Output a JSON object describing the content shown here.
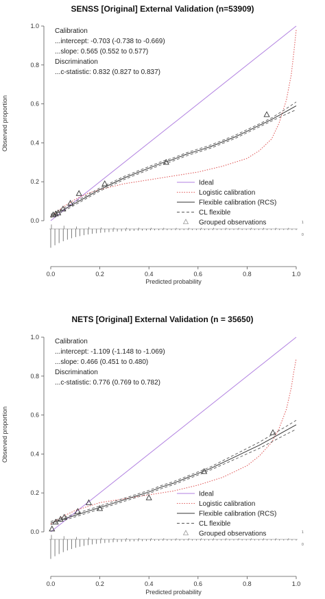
{
  "chart_data": [
    {
      "type": "line",
      "title": "SENSS [Original] External Validation (n=53909)",
      "xlabel": "Predicted probability",
      "ylabel": "Observed proportion",
      "xlim": [
        0,
        1
      ],
      "ylim": [
        0,
        1
      ],
      "x_ticks": [
        "0.0",
        "0.2",
        "0.4",
        "0.6",
        "0.8",
        "1.0"
      ],
      "y_ticks": [
        "0.0",
        "0.2",
        "0.4",
        "0.6",
        "0.8",
        "1.0"
      ],
      "stats": [
        "Calibration",
        "...intercept: -0.703 (-0.738 to -0.669)",
        "...slope: 0.565 (0.552 to 0.577)",
        "Discrimination",
        "...c-statistic: 0.832 (0.827 to 0.837)"
      ],
      "legend_position": "bottom-right",
      "series": [
        {
          "name": "Ideal",
          "color": "#b07fe0",
          "dash": "solid",
          "x": [
            0,
            1
          ],
          "y": [
            0,
            1
          ]
        },
        {
          "name": "Logistic calibration",
          "color": "#e05a5a",
          "dash": "dotted",
          "x": [
            0.0,
            0.02,
            0.05,
            0.1,
            0.15,
            0.2,
            0.3,
            0.4,
            0.5,
            0.6,
            0.7,
            0.8,
            0.85,
            0.9,
            0.93,
            0.96,
            0.98,
            0.99,
            1.0
          ],
          "y": [
            0.02,
            0.04,
            0.07,
            0.11,
            0.14,
            0.16,
            0.19,
            0.21,
            0.23,
            0.25,
            0.28,
            0.32,
            0.36,
            0.42,
            0.5,
            0.62,
            0.75,
            0.86,
            0.98
          ]
        },
        {
          "name": "Flexible calibration (RCS)",
          "color": "#333333",
          "dash": "solid",
          "x": [
            0.0,
            0.02,
            0.05,
            0.1,
            0.15,
            0.2,
            0.25,
            0.3,
            0.35,
            0.4,
            0.45,
            0.5,
            0.55,
            0.6,
            0.65,
            0.7,
            0.75,
            0.8,
            0.85,
            0.9,
            0.95,
            1.0
          ],
          "y": [
            0.025,
            0.035,
            0.055,
            0.09,
            0.125,
            0.16,
            0.19,
            0.22,
            0.245,
            0.27,
            0.295,
            0.315,
            0.34,
            0.36,
            0.38,
            0.405,
            0.43,
            0.46,
            0.49,
            0.52,
            0.555,
            0.59
          ]
        },
        {
          "name": "CL flexible",
          "color": "#555555",
          "dash": "dashed",
          "band": true,
          "x": [
            0.0,
            0.02,
            0.05,
            0.1,
            0.15,
            0.2,
            0.25,
            0.3,
            0.35,
            0.4,
            0.45,
            0.5,
            0.55,
            0.6,
            0.65,
            0.7,
            0.75,
            0.8,
            0.85,
            0.9,
            0.95,
            1.0
          ],
          "y_lower": [
            0.017,
            0.027,
            0.047,
            0.082,
            0.117,
            0.152,
            0.182,
            0.212,
            0.237,
            0.262,
            0.287,
            0.307,
            0.332,
            0.352,
            0.372,
            0.397,
            0.422,
            0.452,
            0.482,
            0.512,
            0.542,
            0.57
          ],
          "y_upper": [
            0.033,
            0.043,
            0.063,
            0.098,
            0.133,
            0.168,
            0.198,
            0.228,
            0.253,
            0.278,
            0.303,
            0.323,
            0.348,
            0.368,
            0.388,
            0.413,
            0.438,
            0.468,
            0.498,
            0.528,
            0.568,
            0.61
          ]
        },
        {
          "name": "Grouped observations",
          "color": "#333333",
          "marker": "triangle",
          "x": [
            0.01,
            0.02,
            0.03,
            0.05,
            0.08,
            0.115,
            0.22,
            0.47,
            0.88
          ],
          "y": [
            0.03,
            0.035,
            0.04,
            0.06,
            0.09,
            0.14,
            0.19,
            0.3,
            0.545
          ]
        }
      ],
      "rug_labels": [
        "1",
        "0"
      ]
    },
    {
      "type": "line",
      "title": "NETS [Original] External Validation (n = 35650)",
      "xlabel": "Predicted probability",
      "ylabel": "Observed proportion",
      "xlim": [
        0,
        1
      ],
      "ylim": [
        0,
        1
      ],
      "x_ticks": [
        "0.0",
        "0.2",
        "0.4",
        "0.6",
        "0.8",
        "1.0"
      ],
      "y_ticks": [
        "0.0",
        "0.2",
        "0.4",
        "0.6",
        "0.8",
        "1.0"
      ],
      "stats": [
        "Calibration",
        "...intercept: -1.109 (-1.148 to -1.069)",
        "...slope: 0.466 (0.451 to 0.480)",
        "Discrimination",
        "...c-statistic: 0.776 (0.769 to 0.782)"
      ],
      "legend_position": "bottom-right",
      "series": [
        {
          "name": "Ideal",
          "color": "#b07fe0",
          "dash": "solid",
          "x": [
            0,
            1
          ],
          "y": [
            0,
            1
          ]
        },
        {
          "name": "Logistic calibration",
          "color": "#e05a5a",
          "dash": "dotted",
          "x": [
            0.0,
            0.05,
            0.1,
            0.2,
            0.3,
            0.4,
            0.5,
            0.6,
            0.7,
            0.8,
            0.85,
            0.9,
            0.93,
            0.96,
            0.98,
            0.99,
            1.0
          ],
          "y": [
            0.04,
            0.08,
            0.11,
            0.15,
            0.17,
            0.19,
            0.21,
            0.24,
            0.28,
            0.34,
            0.39,
            0.46,
            0.53,
            0.63,
            0.74,
            0.82,
            0.89
          ]
        },
        {
          "name": "Flexible calibration (RCS)",
          "color": "#333333",
          "dash": "solid",
          "x": [
            0.0,
            0.05,
            0.1,
            0.15,
            0.2,
            0.25,
            0.3,
            0.35,
            0.4,
            0.45,
            0.5,
            0.55,
            0.6,
            0.65,
            0.7,
            0.75,
            0.8,
            0.85,
            0.9,
            0.95,
            1.0
          ],
          "y": [
            0.045,
            0.065,
            0.085,
            0.105,
            0.125,
            0.145,
            0.165,
            0.185,
            0.205,
            0.23,
            0.25,
            0.275,
            0.3,
            0.325,
            0.355,
            0.385,
            0.415,
            0.445,
            0.48,
            0.515,
            0.55
          ]
        },
        {
          "name": "CL flexible",
          "color": "#555555",
          "dash": "dashed",
          "band": true,
          "x": [
            0.0,
            0.05,
            0.1,
            0.15,
            0.2,
            0.25,
            0.3,
            0.35,
            0.4,
            0.45,
            0.5,
            0.55,
            0.6,
            0.65,
            0.7,
            0.75,
            0.8,
            0.85,
            0.9,
            0.95,
            1.0
          ],
          "y_lower": [
            0.037,
            0.057,
            0.077,
            0.097,
            0.117,
            0.137,
            0.157,
            0.177,
            0.197,
            0.222,
            0.242,
            0.267,
            0.292,
            0.317,
            0.345,
            0.373,
            0.401,
            0.429,
            0.462,
            0.495,
            0.527
          ],
          "y_upper": [
            0.053,
            0.073,
            0.093,
            0.113,
            0.133,
            0.153,
            0.173,
            0.193,
            0.213,
            0.238,
            0.258,
            0.283,
            0.308,
            0.333,
            0.365,
            0.397,
            0.429,
            0.461,
            0.498,
            0.535,
            0.573
          ]
        },
        {
          "name": "Grouped observations",
          "color": "#333333",
          "marker": "triangle",
          "x": [
            0.005,
            0.02,
            0.04,
            0.055,
            0.11,
            0.155,
            0.2,
            0.4,
            0.625,
            0.905
          ],
          "y": [
            0.015,
            0.05,
            0.065,
            0.075,
            0.105,
            0.15,
            0.12,
            0.175,
            0.31,
            0.51
          ]
        }
      ],
      "rug_labels": [
        "1",
        "0"
      ]
    }
  ]
}
